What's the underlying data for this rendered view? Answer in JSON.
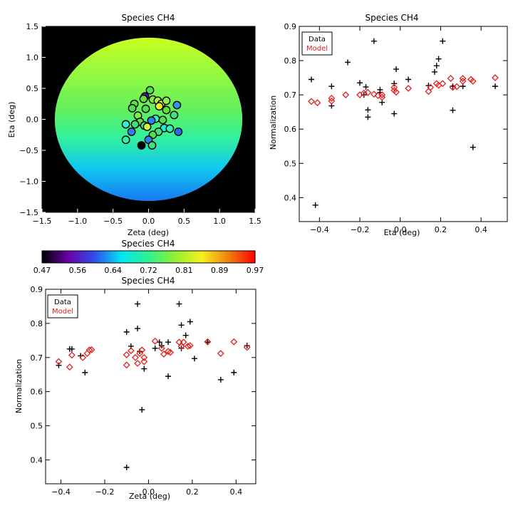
{
  "chart_data": [
    {
      "id": "map",
      "type": "heatmap",
      "title": "Species CH4",
      "xlabel": "Zeta (deg)",
      "ylabel": "Eta (deg)",
      "xlim": [
        -1.5,
        1.5
      ],
      "ylim": [
        -1.5,
        1.5
      ],
      "xticks": [
        "−1.5",
        "−1.0",
        "−0.5",
        "0.0",
        "0.5",
        "1.0",
        "1.5"
      ],
      "yticks": [
        "−1.5",
        "−1.0",
        "−0.5",
        "0.0",
        "0.5",
        "1.0",
        "1.5"
      ],
      "disk_radius": 1.32,
      "background_color": "#000000",
      "field_colors": {
        "top": "#c8ff20",
        "middle": "#30f0a0",
        "bottom": "#1878f0"
      },
      "points": [
        {
          "zeta": 0.02,
          "eta": 0.47,
          "color": "#50e050"
        },
        {
          "zeta": -0.05,
          "eta": 0.37,
          "color": "#5018b0"
        },
        {
          "zeta": -0.07,
          "eta": 0.33,
          "color": "#60e040"
        },
        {
          "zeta": 0.06,
          "eta": 0.32,
          "color": "#80f040"
        },
        {
          "zeta": 0.13,
          "eta": 0.3,
          "color": "#b0f040"
        },
        {
          "zeta": 0.18,
          "eta": 0.25,
          "color": "#d0f040"
        },
        {
          "zeta": 0.25,
          "eta": 0.3,
          "color": "#90f040"
        },
        {
          "zeta": 0.4,
          "eta": 0.23,
          "color": "#3890f0"
        },
        {
          "zeta": 0.15,
          "eta": 0.21,
          "color": "#f0f020"
        },
        {
          "zeta": -0.2,
          "eta": 0.25,
          "color": "#60e040"
        },
        {
          "zeta": -0.23,
          "eta": 0.18,
          "color": "#50e050"
        },
        {
          "zeta": -0.04,
          "eta": 0.17,
          "color": "#50e050"
        },
        {
          "zeta": 0.25,
          "eta": 0.15,
          "color": "#60e040"
        },
        {
          "zeta": 0.36,
          "eta": 0.07,
          "color": "#40e080"
        },
        {
          "zeta": -0.15,
          "eta": 0.06,
          "color": "#80f040"
        },
        {
          "zeta": 0.1,
          "eta": 0.01,
          "color": "#30f0c0"
        },
        {
          "zeta": 0.2,
          "eta": -0.01,
          "color": "#50e050"
        },
        {
          "zeta": 0.04,
          "eta": -0.02,
          "color": "#3080f0"
        },
        {
          "zeta": -0.12,
          "eta": -0.04,
          "color": "#60e040"
        },
        {
          "zeta": -0.32,
          "eta": -0.08,
          "color": "#30f0d0"
        },
        {
          "zeta": -0.19,
          "eta": -0.08,
          "color": "#40e080"
        },
        {
          "zeta": -0.06,
          "eta": -0.1,
          "color": "#40e090"
        },
        {
          "zeta": -0.02,
          "eta": -0.12,
          "color": "#d0f040"
        },
        {
          "zeta": 0.22,
          "eta": -0.14,
          "color": "#20f0d0"
        },
        {
          "zeta": 0.3,
          "eta": -0.15,
          "color": "#30f0c0"
        },
        {
          "zeta": 0.14,
          "eta": -0.2,
          "color": "#40e080"
        },
        {
          "zeta": 0.42,
          "eta": -0.2,
          "color": "#2070f0"
        },
        {
          "zeta": -0.24,
          "eta": -0.2,
          "color": "#3080f0"
        },
        {
          "zeta": 0.06,
          "eta": -0.25,
          "color": "#50e050"
        },
        {
          "zeta": -0.32,
          "eta": -0.33,
          "color": "#30f0a0"
        },
        {
          "zeta": 0.0,
          "eta": -0.33,
          "color": "#3080f0"
        },
        {
          "zeta": 0.05,
          "eta": -0.42,
          "color": "#40e080"
        },
        {
          "zeta": -0.1,
          "eta": -0.42,
          "color": "#000000"
        }
      ]
    },
    {
      "id": "colorbar",
      "type": "colorbar",
      "title": "Species CH4",
      "range": [
        0.47,
        0.97
      ],
      "tick_labels": [
        "0.47",
        "0.56",
        "0.64",
        "0.72",
        "0.81",
        "0.89",
        "0.97"
      ],
      "stops": [
        "#000000",
        "#6a00a8",
        "#3050f0",
        "#00e8f0",
        "#30f090",
        "#90f030",
        "#f8f020",
        "#f08010",
        "#ff0000"
      ]
    },
    {
      "id": "eta",
      "type": "scatter",
      "title": "Species CH4",
      "xlabel": "Eta (deg)",
      "ylabel": "Normalization",
      "xlim": [
        -0.5,
        0.53
      ],
      "ylim": [
        0.33,
        0.9
      ],
      "xticks": [
        -0.4,
        -0.2,
        0.0,
        0.2,
        0.4
      ],
      "xtick_labels": [
        "−0.4",
        "−0.2",
        "0.0",
        "0.2",
        "0.4"
      ],
      "yticks": [
        0.4,
        0.5,
        0.6,
        0.7,
        0.8,
        0.9
      ],
      "ytick_labels": [
        "0.4",
        "0.5",
        "0.6",
        "0.7",
        "0.8",
        "0.9"
      ],
      "legend": {
        "data": "Data",
        "model": "Model",
        "placement": "top-left"
      },
      "series": [
        {
          "name": "Data",
          "marker": "+",
          "color": "#000000",
          "points": [
            [
              -0.44,
              0.745
            ],
            [
              -0.42,
              0.378
            ],
            [
              -0.34,
              0.725
            ],
            [
              -0.34,
              0.668
            ],
            [
              -0.26,
              0.795
            ],
            [
              -0.2,
              0.735
            ],
            [
              -0.18,
              0.7
            ],
            [
              -0.17,
              0.723
            ],
            [
              -0.16,
              0.656
            ],
            [
              -0.16,
              0.635
            ],
            [
              -0.13,
              0.857
            ],
            [
              -0.1,
              0.715
            ],
            [
              -0.1,
              0.707
            ],
            [
              -0.09,
              0.678
            ],
            [
              -0.03,
              0.645
            ],
            [
              -0.03,
              0.733
            ],
            [
              -0.02,
              0.775
            ],
            [
              0.04,
              0.745
            ],
            [
              0.14,
              0.727
            ],
            [
              0.17,
              0.767
            ],
            [
              0.18,
              0.785
            ],
            [
              0.19,
              0.805
            ],
            [
              0.21,
              0.857
            ],
            [
              0.26,
              0.655
            ],
            [
              0.26,
              0.725
            ],
            [
              0.31,
              0.725
            ],
            [
              0.36,
              0.547
            ],
            [
              0.47,
              0.725
            ]
          ]
        },
        {
          "name": "Model",
          "marker": "diamond",
          "color": "#e02020",
          "points": [
            [
              -0.44,
              0.681
            ],
            [
              -0.41,
              0.677
            ],
            [
              -0.34,
              0.682
            ],
            [
              -0.34,
              0.69
            ],
            [
              -0.27,
              0.7
            ],
            [
              -0.2,
              0.7
            ],
            [
              -0.18,
              0.705
            ],
            [
              -0.16,
              0.707
            ],
            [
              -0.13,
              0.702
            ],
            [
              -0.11,
              0.698
            ],
            [
              -0.09,
              0.693
            ],
            [
              -0.09,
              0.7
            ],
            [
              -0.03,
              0.722
            ],
            [
              -0.03,
              0.713
            ],
            [
              -0.02,
              0.708
            ],
            [
              0.04,
              0.719
            ],
            [
              0.14,
              0.71
            ],
            [
              0.15,
              0.722
            ],
            [
              0.18,
              0.733
            ],
            [
              0.19,
              0.728
            ],
            [
              0.21,
              0.733
            ],
            [
              0.25,
              0.748
            ],
            [
              0.26,
              0.722
            ],
            [
              0.28,
              0.724
            ],
            [
              0.31,
              0.74
            ],
            [
              0.31,
              0.748
            ],
            [
              0.35,
              0.745
            ],
            [
              0.36,
              0.74
            ],
            [
              0.47,
              0.75
            ]
          ]
        }
      ]
    },
    {
      "id": "zeta",
      "type": "scatter",
      "title": "Species CH4",
      "xlabel": "Zeta (deg)",
      "ylabel": "Normalization",
      "xlim": [
        -0.47,
        0.49
      ],
      "ylim": [
        0.33,
        0.9
      ],
      "xticks": [
        -0.4,
        -0.2,
        0.0,
        0.2,
        0.4
      ],
      "xtick_labels": [
        "−0.4",
        "−0.2",
        "0.0",
        "0.2",
        "0.4"
      ],
      "yticks": [
        0.4,
        0.5,
        0.6,
        0.7,
        0.8,
        0.9
      ],
      "ytick_labels": [
        "0.4",
        "0.5",
        "0.6",
        "0.7",
        "0.8",
        "0.9"
      ],
      "legend": {
        "data": "Data",
        "model": "Model",
        "placement": "top-left"
      },
      "series": [
        {
          "name": "Data",
          "marker": "+",
          "color": "#000000",
          "points": [
            [
              -0.41,
              0.677
            ],
            [
              -0.36,
              0.725
            ],
            [
              -0.35,
              0.725
            ],
            [
              -0.31,
              0.705
            ],
            [
              -0.29,
              0.656
            ],
            [
              -0.1,
              0.378
            ],
            [
              -0.1,
              0.775
            ],
            [
              -0.08,
              0.733
            ],
            [
              -0.05,
              0.857
            ],
            [
              -0.05,
              0.785
            ],
            [
              -0.04,
              0.718
            ],
            [
              -0.03,
              0.547
            ],
            [
              -0.02,
              0.667
            ],
            [
              0.03,
              0.727
            ],
            [
              0.05,
              0.745
            ],
            [
              0.06,
              0.735
            ],
            [
              0.09,
              0.645
            ],
            [
              0.09,
              0.745
            ],
            [
              0.14,
              0.857
            ],
            [
              0.15,
              0.795
            ],
            [
              0.15,
              0.727
            ],
            [
              0.17,
              0.765
            ],
            [
              0.19,
              0.805
            ],
            [
              0.21,
              0.697
            ],
            [
              0.27,
              0.745
            ],
            [
              0.33,
              0.635
            ],
            [
              0.39,
              0.656
            ],
            [
              0.45,
              0.735
            ]
          ]
        },
        {
          "name": "Model",
          "marker": "diamond",
          "color": "#e02020",
          "points": [
            [
              -0.41,
              0.688
            ],
            [
              -0.36,
              0.672
            ],
            [
              -0.35,
              0.707
            ],
            [
              -0.3,
              0.7
            ],
            [
              -0.28,
              0.712
            ],
            [
              -0.27,
              0.722
            ],
            [
              -0.26,
              0.723
            ],
            [
              -0.1,
              0.708
            ],
            [
              -0.1,
              0.678
            ],
            [
              -0.08,
              0.72
            ],
            [
              -0.06,
              0.7
            ],
            [
              -0.05,
              0.683
            ],
            [
              -0.04,
              0.712
            ],
            [
              -0.03,
              0.722
            ],
            [
              -0.02,
              0.7
            ],
            [
              -0.02,
              0.688
            ],
            [
              0.03,
              0.748
            ],
            [
              0.06,
              0.727
            ],
            [
              0.07,
              0.71
            ],
            [
              0.09,
              0.718
            ],
            [
              0.1,
              0.715
            ],
            [
              0.14,
              0.745
            ],
            [
              0.15,
              0.733
            ],
            [
              0.16,
              0.745
            ],
            [
              0.18,
              0.733
            ],
            [
              0.19,
              0.735
            ],
            [
              0.27,
              0.746
            ],
            [
              0.33,
              0.712
            ],
            [
              0.39,
              0.746
            ],
            [
              0.45,
              0.73
            ]
          ]
        }
      ]
    }
  ]
}
